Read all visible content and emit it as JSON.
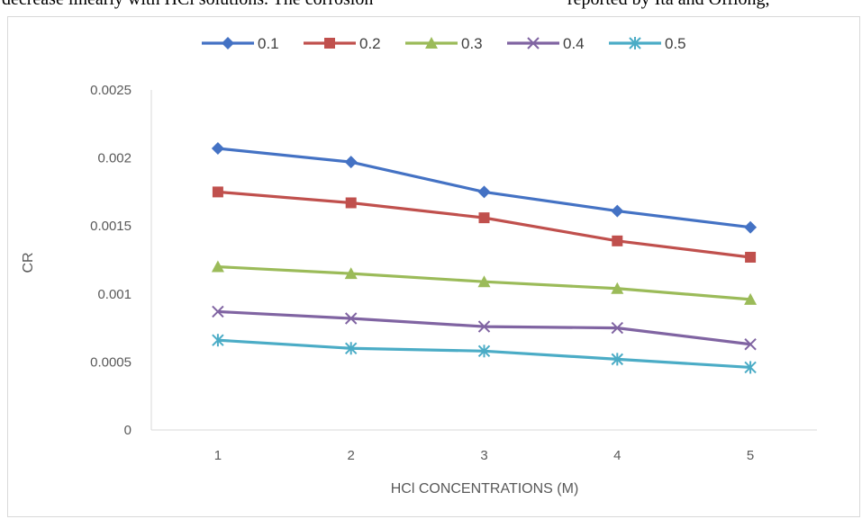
{
  "page": {
    "header_left": "decrease linearly with HCl solutions. The corrosion",
    "header_right": "reported by Ita and Offiong,"
  },
  "chart_data": {
    "type": "line",
    "title": "",
    "xlabel": "HCl CONCENTRATIONS (M)",
    "ylabel": "CR",
    "categories": [
      "1",
      "2",
      "3",
      "4",
      "5"
    ],
    "ylim": [
      0,
      0.0025
    ],
    "yticks": [
      "0",
      "0.0005",
      "0.001",
      "0.0015",
      "0.002",
      "0.0025"
    ],
    "legend_position": "top",
    "grid": false,
    "series": [
      {
        "name": "0.1",
        "color": "#4472C4",
        "marker": "diamond",
        "values": [
          0.00207,
          0.00197,
          0.00175,
          0.00161,
          0.00149
        ]
      },
      {
        "name": "0.2",
        "color": "#C0504D",
        "marker": "square",
        "values": [
          0.00175,
          0.00167,
          0.00156,
          0.00139,
          0.00127
        ]
      },
      {
        "name": "0.3",
        "color": "#9BBB59",
        "marker": "triangle",
        "values": [
          0.0012,
          0.00115,
          0.00109,
          0.00104,
          0.00096
        ]
      },
      {
        "name": "0.4",
        "color": "#8064A2",
        "marker": "x",
        "values": [
          0.00087,
          0.00082,
          0.00076,
          0.00075,
          0.00063
        ]
      },
      {
        "name": "0.5",
        "color": "#4BACC6",
        "marker": "asterisk",
        "values": [
          0.00066,
          0.0006,
          0.00058,
          0.00052,
          0.00046
        ]
      }
    ]
  }
}
